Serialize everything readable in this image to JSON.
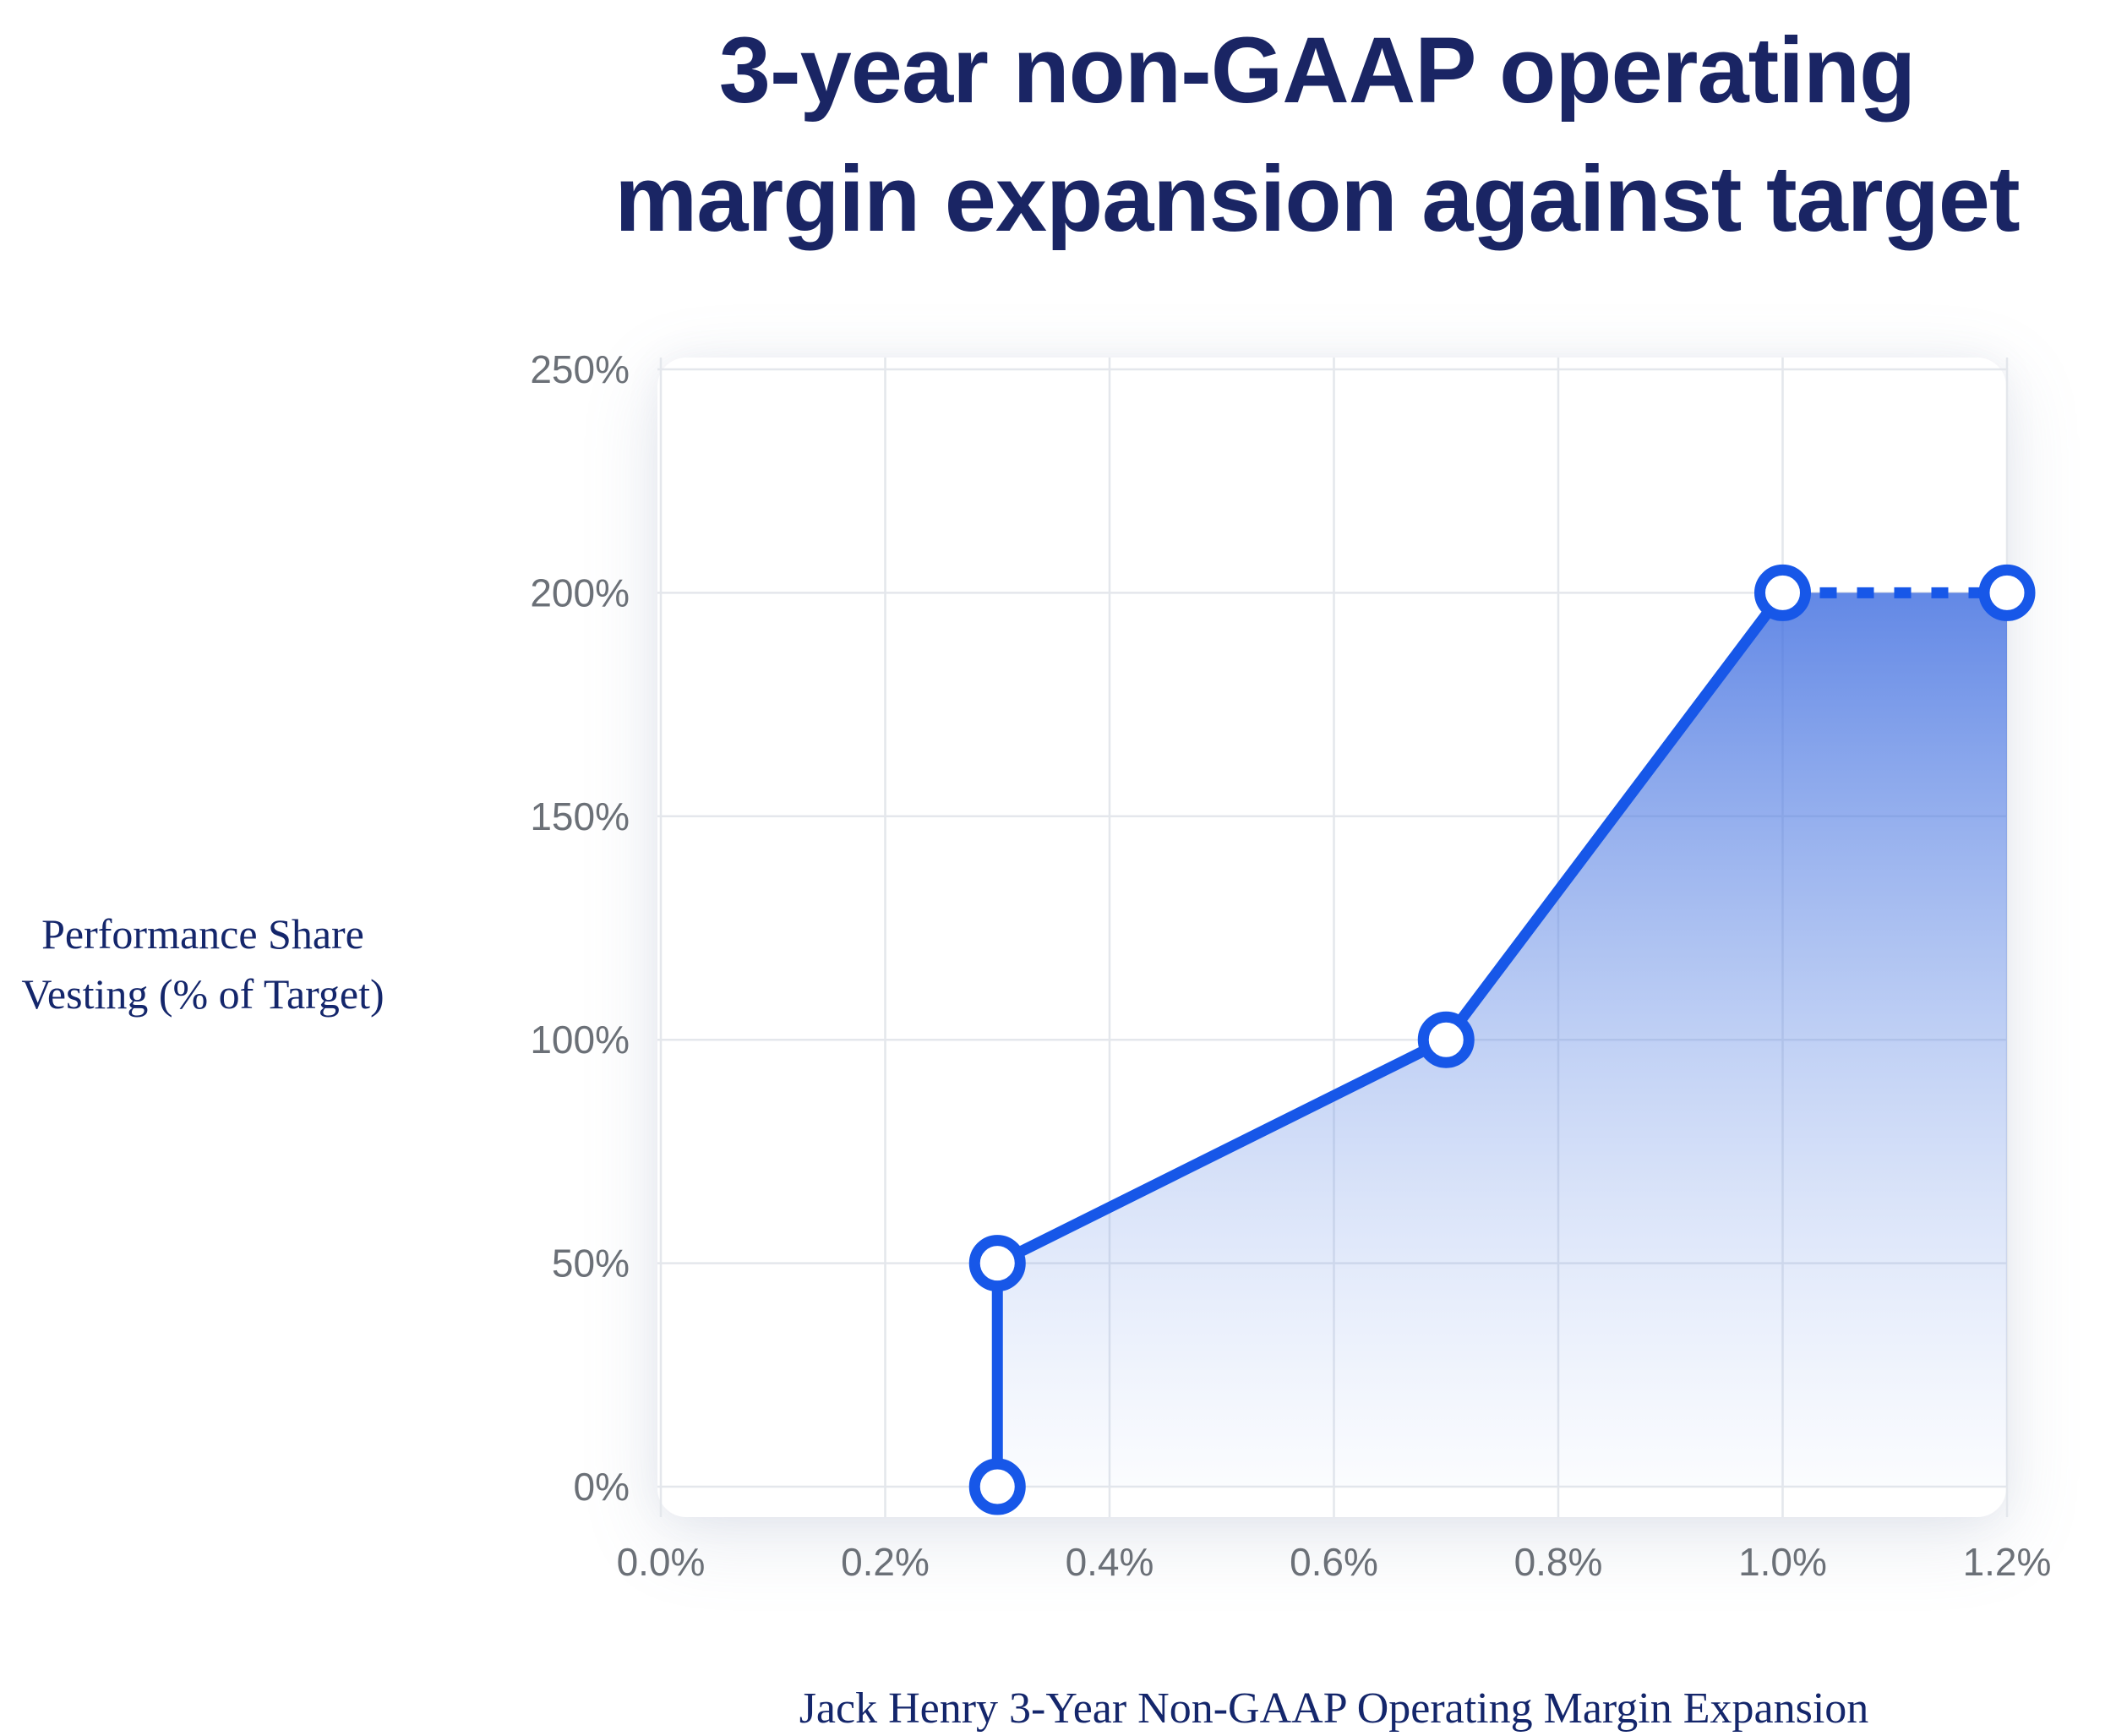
{
  "page": {
    "title_line1": "3-year non-GAAP operating",
    "title_line2": "margin expansion against target",
    "y_axis_label_line1": "Performance Share",
    "y_axis_label_line2": "Vesting (% of Target)",
    "caption": "Jack Henry 3-Year Non-GAAP Operating Margin Expansion"
  },
  "chart_data": {
    "type": "line",
    "title": "3-year non-GAAP operating margin expansion against target",
    "xlabel": "Jack Henry 3-Year Non-GAAP Operating Margin Expansion",
    "ylabel": "Performance Share Vesting (% of Target)",
    "x_tick_labels": [
      "0.0%",
      "0.2%",
      "0.4%",
      "0.6%",
      "0.8%",
      "1.0%",
      "1.2%"
    ],
    "y_tick_labels": [
      "0%",
      "50%",
      "100%",
      "150%",
      "200%",
      "250%"
    ],
    "xlim": [
      0,
      1.2
    ],
    "ylim": [
      0,
      250
    ],
    "grid": true,
    "legend": "none",
    "series": [
      {
        "name": "vesting-schedule",
        "style": "solid",
        "points": [
          [
            0.3,
            0
          ],
          [
            0.3,
            50
          ],
          [
            0.7,
            100
          ],
          [
            1.0,
            200
          ]
        ]
      },
      {
        "name": "vesting-cap-extension",
        "style": "dotted",
        "points": [
          [
            1.0,
            200
          ],
          [
            1.2,
            200
          ]
        ]
      }
    ],
    "markers": [
      [
        0.3,
        0
      ],
      [
        0.3,
        50
      ],
      [
        0.7,
        100
      ],
      [
        1.0,
        200
      ],
      [
        1.2,
        200
      ]
    ],
    "area_points": [
      [
        0.3,
        0
      ],
      [
        0.3,
        50
      ],
      [
        0.7,
        100
      ],
      [
        1.0,
        200
      ],
      [
        1.2,
        200
      ],
      [
        1.2,
        0
      ]
    ],
    "colors": {
      "line": "#1757e8",
      "marker_fill": "#ffffff",
      "area_gradient_top": "rgba(64,110,224,0.82)",
      "area_gradient_mid": "rgba(97,138,229,0.35)",
      "area_gradient_bottom": "rgba(150,178,238,0.04)",
      "grid": "#e4e7ec",
      "tick_text": "#6b7077",
      "title_text": "#1a2564",
      "serif_text": "#14266b",
      "panel_bg": "#ffffff"
    }
  }
}
